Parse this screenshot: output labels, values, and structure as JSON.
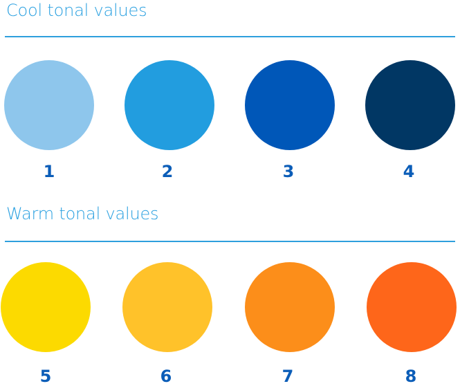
{
  "cool": {
    "title": "Cool tonal values",
    "swatches": [
      {
        "label": "1",
        "color": "#8ec6ec"
      },
      {
        "label": "2",
        "color": "#229ddf"
      },
      {
        "label": "3",
        "color": "#0057b8"
      },
      {
        "label": "4",
        "color": "#013764"
      }
    ]
  },
  "warm": {
    "title": "Warm tonal values",
    "swatches": [
      {
        "label": "5",
        "color": "#fcda00"
      },
      {
        "label": "6",
        "color": "#ffc22a"
      },
      {
        "label": "7",
        "color": "#fc8e1a"
      },
      {
        "label": "8",
        "color": "#fe661a"
      }
    ]
  }
}
